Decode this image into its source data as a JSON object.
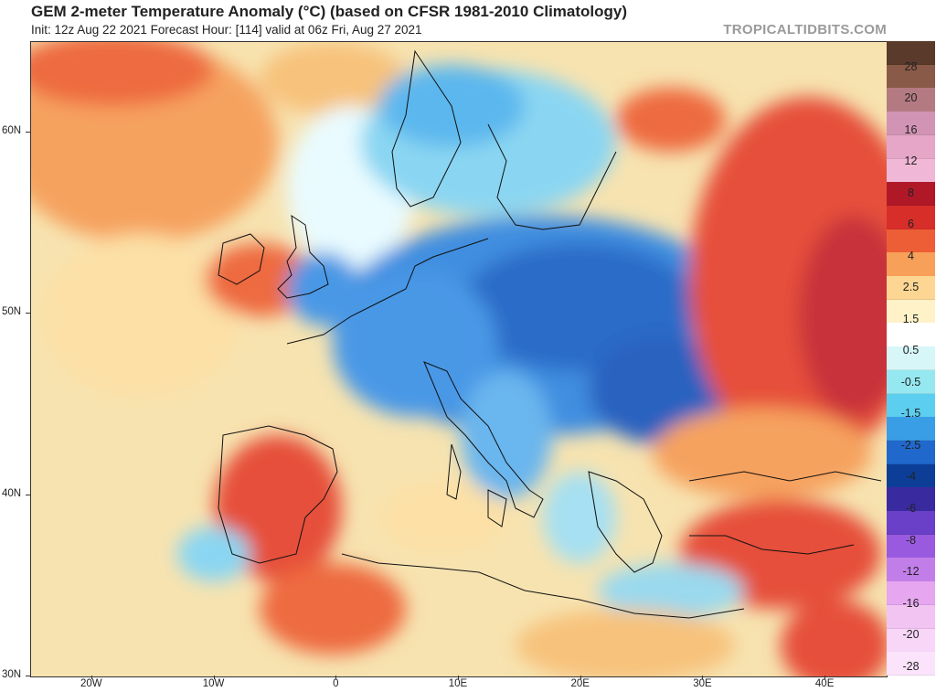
{
  "header": {
    "title": "GEM 2-meter Temperature Anomaly (°C) (based on CFSR 1981-2010 Climatology)",
    "subtitle": "Init: 12z Aug 22 2021   Forecast Hour: [114]   valid at 06z Fri, Aug 27 2021",
    "watermark": "TROPICALTIDBITS.COM"
  },
  "map": {
    "lat_ticks": [
      {
        "label": "60N",
        "lat": 60
      },
      {
        "label": "50N",
        "lat": 50
      },
      {
        "label": "40N",
        "lat": 40
      },
      {
        "label": "30N",
        "lat": 30
      }
    ],
    "lon_ticks": [
      {
        "label": "20W",
        "lon": -20
      },
      {
        "label": "10W",
        "lon": -10
      },
      {
        "label": "0",
        "lon": 0
      },
      {
        "label": "10E",
        "lon": 10
      },
      {
        "label": "20E",
        "lon": 20
      },
      {
        "label": "30E",
        "lon": 30
      },
      {
        "label": "40E",
        "lon": 40
      }
    ],
    "lon_range": [
      -25,
      45
    ],
    "lat_range": [
      30,
      65
    ],
    "ocean_color": "#f7e3b0"
  },
  "colorbar": {
    "labels": [
      "28",
      "20",
      "16",
      "12",
      "8",
      "6",
      "4",
      "2.5",
      "1.5",
      "0.5",
      "-0.5",
      "-1.5",
      "-2.5",
      "-4",
      "-6",
      "-8",
      "-12",
      "-16",
      "-20",
      "-28"
    ],
    "colors": [
      "#5a3a2a",
      "#8a5a48",
      "#b47a82",
      "#d294b4",
      "#e6a6c8",
      "#f0b8d6",
      "#b01828",
      "#d82e2a",
      "#ee5e36",
      "#f7a05a",
      "#fcd692",
      "#fff2c8",
      "#ffffff",
      "#d6f6f8",
      "#96e8f0",
      "#5ccef0",
      "#3a9ee6",
      "#2068cc",
      "#0c3e98",
      "#3a2aa0",
      "#6a40c8",
      "#9a5ae0",
      "#c27ee8",
      "#e6a6f0",
      "#f2c4f2",
      "#f8d6f8",
      "#fbe4fb"
    ]
  }
}
